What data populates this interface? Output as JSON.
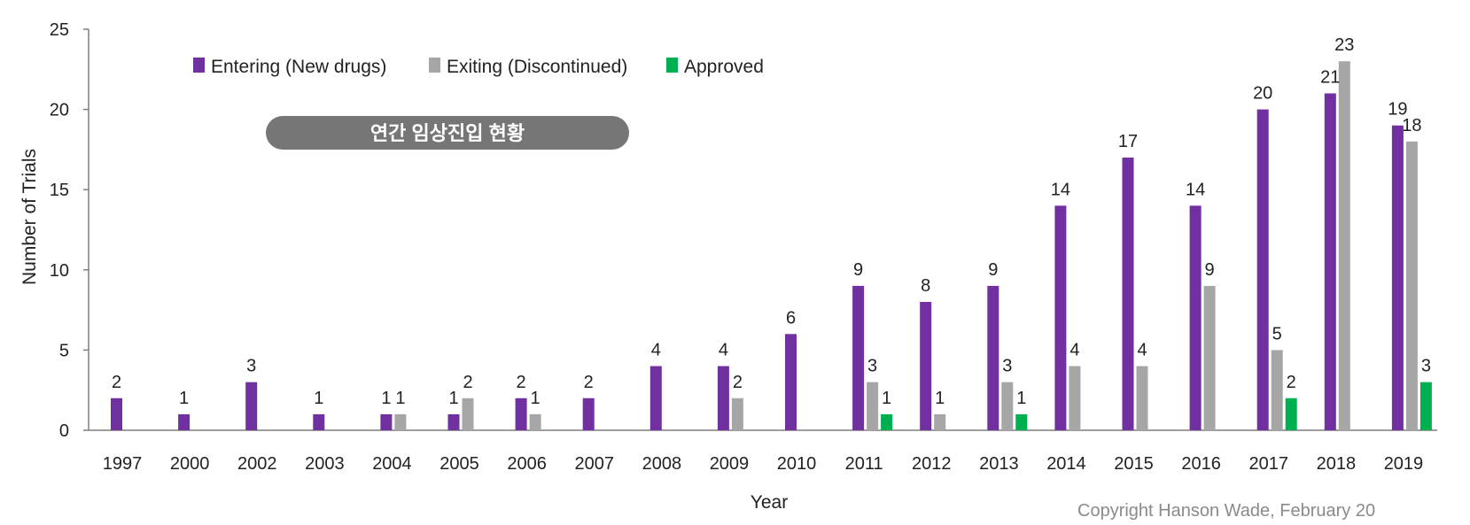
{
  "chart_data": {
    "type": "bar",
    "title": "",
    "xlabel": "Year",
    "ylabel": "Number of Trials",
    "ylim": [
      0,
      25
    ],
    "yticks": [
      0,
      5,
      10,
      15,
      20,
      25
    ],
    "grid": false,
    "legend_position": "top-left",
    "categories": [
      "1997",
      "2000",
      "2002",
      "2003",
      "2004",
      "2005",
      "2006",
      "2007",
      "2008",
      "2009",
      "2010",
      "2011",
      "2012",
      "2013",
      "2014",
      "2015",
      "2016",
      "2017",
      "2018",
      "2019"
    ],
    "series": [
      {
        "name": "Entering (New drugs)",
        "color": "#7030a0",
        "values": [
          2,
          1,
          3,
          1,
          1,
          1,
          2,
          2,
          4,
          4,
          6,
          9,
          8,
          9,
          14,
          17,
          14,
          20,
          21,
          19
        ]
      },
      {
        "name": "Exiting (Discontinued)",
        "color": "#a6a6a6",
        "values": [
          null,
          null,
          null,
          null,
          1,
          2,
          1,
          null,
          null,
          2,
          null,
          3,
          1,
          3,
          4,
          4,
          9,
          5,
          23,
          18
        ]
      },
      {
        "name": "Approved",
        "color": "#00b050",
        "values": [
          null,
          null,
          null,
          null,
          null,
          null,
          null,
          null,
          null,
          null,
          null,
          1,
          null,
          1,
          null,
          null,
          null,
          2,
          null,
          3
        ]
      }
    ]
  },
  "banner": {
    "text": "연간 임상진입 현황",
    "color": "#767676"
  },
  "copyright": "Copyright Hanson Wade, February 20"
}
